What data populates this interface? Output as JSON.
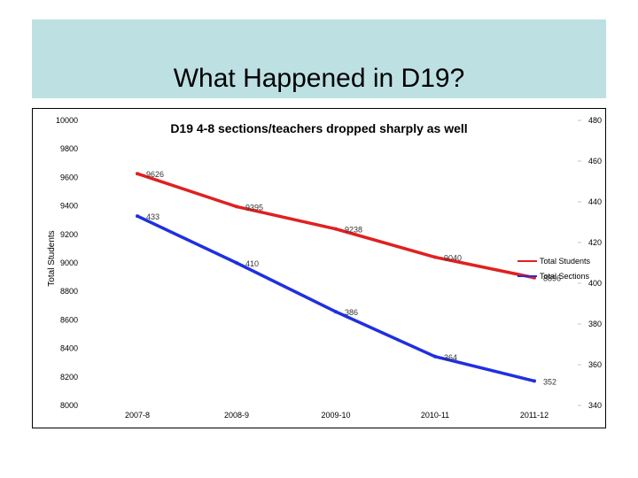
{
  "slide": {
    "title": "What Happened in D19?"
  },
  "chart_data": {
    "type": "line",
    "title": "D19 4-8 sections/teachers dropped sharply as well",
    "xlabel": "",
    "ylabel": "Total Students",
    "y2label": "",
    "categories": [
      "2007-8",
      "2008-9",
      "2009-10",
      "2010-11",
      "2011-12"
    ],
    "ylim": [
      8000,
      10000
    ],
    "yticks": [
      8000,
      8200,
      8400,
      8600,
      8800,
      9000,
      9200,
      9400,
      9600,
      9800,
      10000
    ],
    "y2lim": [
      340,
      480
    ],
    "y2ticks": [
      340,
      360,
      380,
      400,
      420,
      440,
      460,
      480
    ],
    "grid": false,
    "legend": "right",
    "series": [
      {
        "name": "Total Students",
        "axis": "left",
        "color": "#e02020",
        "values": [
          9626,
          9395,
          9238,
          9040,
          8896
        ],
        "labels": [
          "9626",
          "9395",
          "9238",
          "9040",
          "8896"
        ]
      },
      {
        "name": "Total Sections",
        "axis": "right",
        "color": "#1f2fe0",
        "values": [
          433,
          410,
          386,
          364,
          352
        ],
        "labels": [
          "433",
          "410",
          "386",
          "364",
          "352"
        ]
      }
    ]
  }
}
